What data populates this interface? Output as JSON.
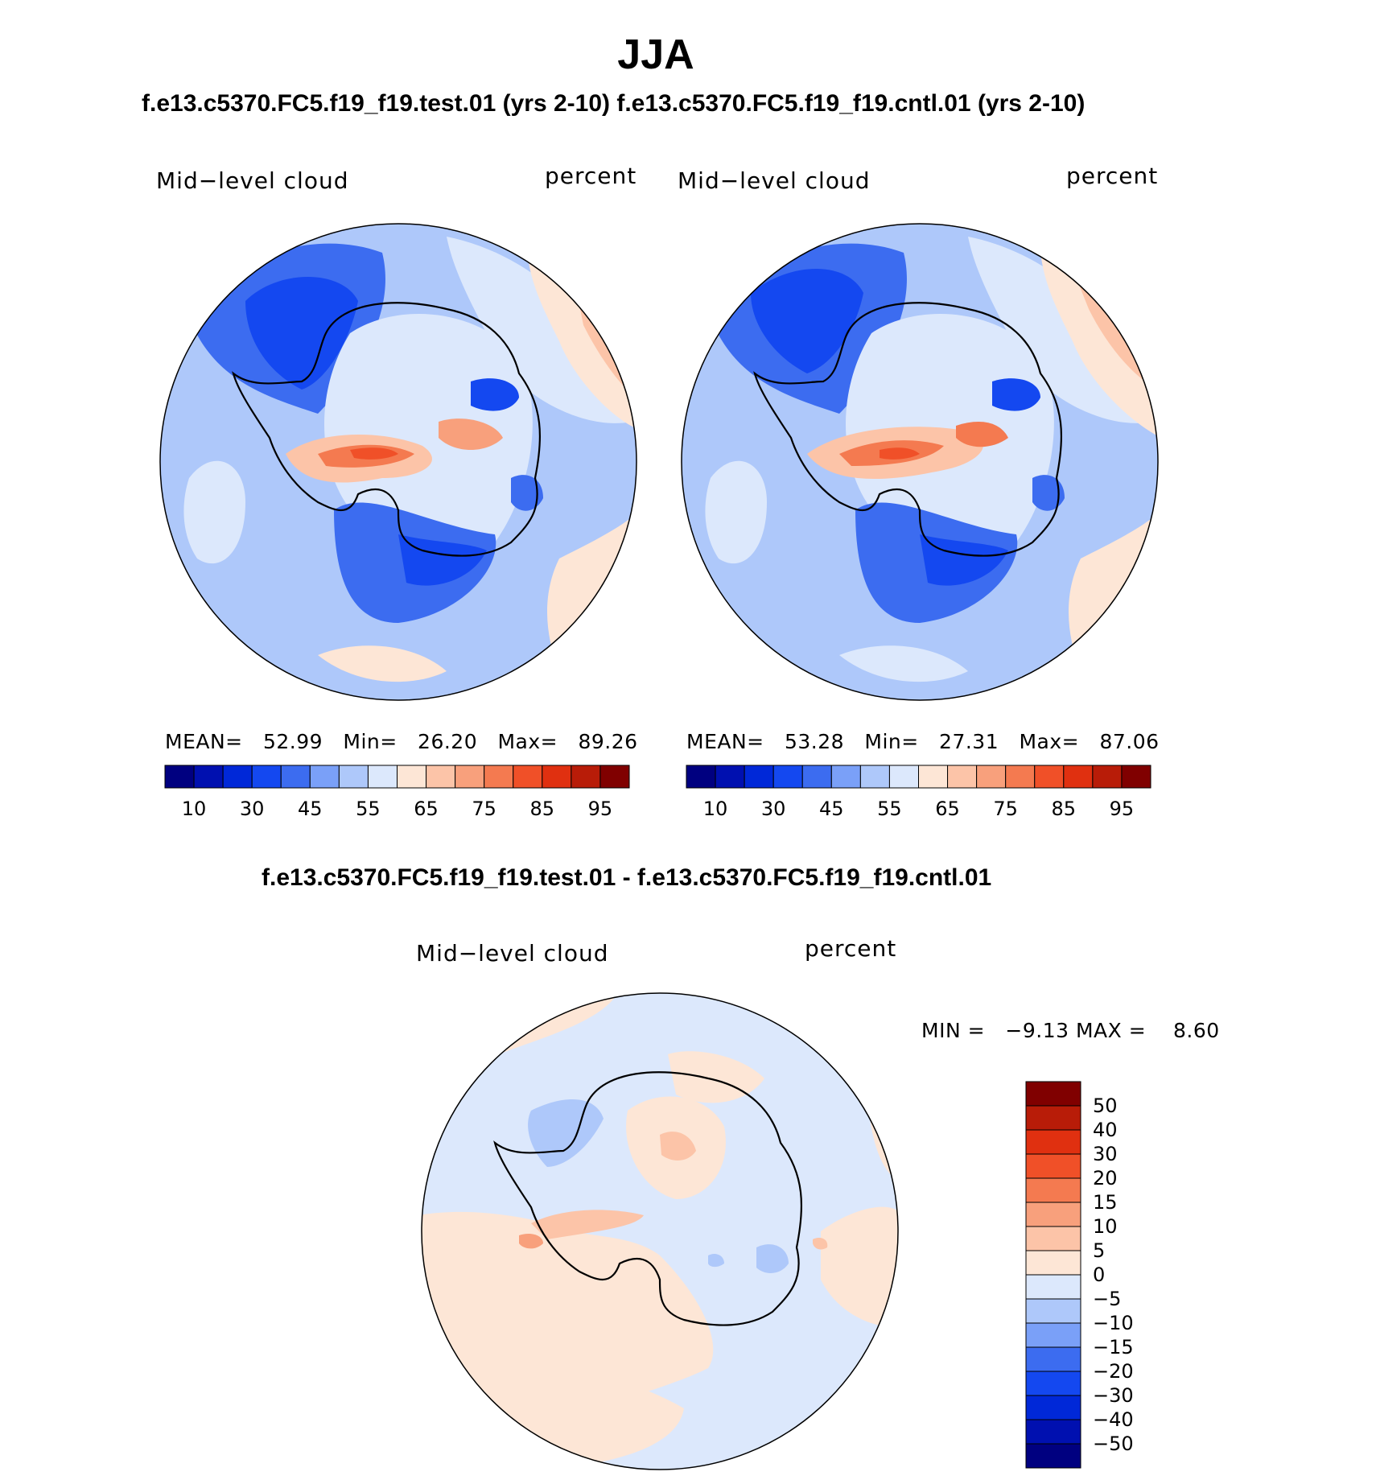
{
  "title": "JJA",
  "subtitle_top": "f.e13.c5370.FC5.f19_f19.test.01 (yrs 2-10) f.e13.c5370.FC5.f19_f19.cntl.01 (yrs 2-10)",
  "subtitle_diff": "f.e13.c5370.FC5.f19_f19.test.01 - f.e13.c5370.FC5.f19_f19.cntl.01",
  "colors": {
    "abs_scale": [
      "#000080",
      "#0010b0",
      "#0028d8",
      "#1448f0",
      "#3c6cf0",
      "#7aa0f8",
      "#aec8fa",
      "#dce8fc",
      "#fde6d6",
      "#fcc4a8",
      "#f8a07c",
      "#f47a50",
      "#f05028",
      "#e03010",
      "#b81c08",
      "#800000"
    ],
    "diff_scale": [
      "#000080",
      "#0010b0",
      "#0028d8",
      "#1448f0",
      "#3c6cf0",
      "#7aa0f8",
      "#aec8fa",
      "#dce8fc",
      "#fde6d6",
      "#fcc4a8",
      "#f8a07c",
      "#f47a50",
      "#f05028",
      "#e03010",
      "#b81c08",
      "#800000"
    ],
    "coast": "#000000"
  },
  "panels": [
    {
      "variable": "Mid−level cloud",
      "units": "percent",
      "stats": {
        "mean_label": "MEAN=",
        "mean": "52.99",
        "min_label": "Min=",
        "min": "26.20",
        "max_label": "Max=",
        "max": "89.26"
      },
      "colorbar_ticks": [
        "10",
        "30",
        "45",
        "55",
        "65",
        "75",
        "85",
        "95"
      ]
    },
    {
      "variable": "Mid−level cloud",
      "units": "percent",
      "stats": {
        "mean_label": "MEAN=",
        "mean": "53.28",
        "min_label": "Min=",
        "min": "27.31",
        "max_label": "Max=",
        "max": "87.06"
      },
      "colorbar_ticks": [
        "10",
        "30",
        "45",
        "55",
        "65",
        "75",
        "85",
        "95"
      ]
    }
  ],
  "diff_panel": {
    "variable": "Mid−level cloud",
    "units": "percent",
    "min_label": "MIN =",
    "min": "−9.13",
    "max_label": "MAX =",
    "max": "8.60",
    "colorbar_ticks": [
      "50",
      "40",
      "30",
      "20",
      "15",
      "10",
      "5",
      "0",
      "−5",
      "−10",
      "−15",
      "−20",
      "−30",
      "−40",
      "−50"
    ]
  }
}
